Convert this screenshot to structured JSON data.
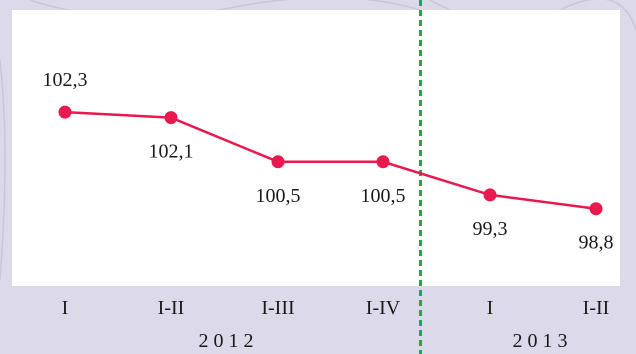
{
  "chart_data": {
    "type": "line",
    "categories": [
      "I",
      "I-II",
      "I-III",
      "I-IV",
      "I",
      "I-II"
    ],
    "values": [
      102.3,
      102.1,
      100.5,
      100.5,
      99.3,
      98.8
    ],
    "value_labels": [
      "102,3",
      "102,1",
      "100,5",
      "100,5",
      "99,3",
      "98,8"
    ],
    "groups": [
      {
        "label": "2 0 1 2",
        "categories": [
          "I",
          "I-II",
          "I-III",
          "I-IV"
        ]
      },
      {
        "label": "2 0 1 3",
        "categories": [
          "I",
          "I-II"
        ]
      }
    ],
    "title": "",
    "xlabel": "",
    "ylabel": "",
    "ylim": [
      96,
      106
    ],
    "grid": false,
    "legend": "none",
    "colors": {
      "line": "#e8194f",
      "marker": "#e8194f",
      "divider": "#1ea84a",
      "plot_background": "#ffffff",
      "page_background": "#dcd9ea"
    }
  }
}
